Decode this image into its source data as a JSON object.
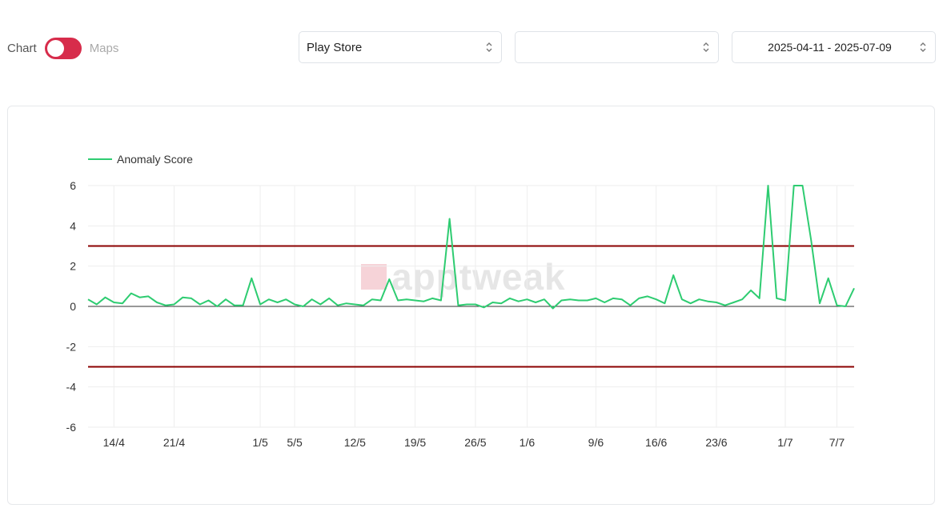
{
  "toggle": {
    "left_label": "Chart",
    "right_label": "Maps",
    "checked": true
  },
  "selects": {
    "store": "Play Store",
    "second": "",
    "date_range": "2025-04-11 - 2025-07-09"
  },
  "watermark": "apptweak",
  "colors": {
    "accent": "#d72c4b",
    "series": "#2ecc71",
    "threshold": "#8b0000",
    "zero_line": "#333333"
  },
  "chart_data": {
    "type": "line",
    "legend": "top-left",
    "grid": true,
    "ylim": [
      -6,
      6
    ],
    "yticks": [
      "6",
      "4",
      "2",
      "0",
      "-2",
      "-4",
      "-6"
    ],
    "x_start": "2025-04-11",
    "x_end": "2025-07-09",
    "xticks": [
      {
        "label": "14/4",
        "date": "2025-04-14"
      },
      {
        "label": "21/4",
        "date": "2025-04-21"
      },
      {
        "label": "1/5",
        "date": "2025-05-01"
      },
      {
        "label": "5/5",
        "date": "2025-05-05"
      },
      {
        "label": "12/5",
        "date": "2025-05-12"
      },
      {
        "label": "19/5",
        "date": "2025-05-19"
      },
      {
        "label": "26/5",
        "date": "2025-05-26"
      },
      {
        "label": "1/6",
        "date": "2025-06-01"
      },
      {
        "label": "9/6",
        "date": "2025-06-09"
      },
      {
        "label": "16/6",
        "date": "2025-06-16"
      },
      {
        "label": "23/6",
        "date": "2025-06-23"
      },
      {
        "label": "1/7",
        "date": "2025-07-01"
      },
      {
        "label": "7/7",
        "date": "2025-07-07"
      }
    ],
    "thresholds": [
      3,
      -3
    ],
    "series": [
      {
        "name": "Anomaly Score",
        "values": [
          0.35,
          0.1,
          0.45,
          0.2,
          0.15,
          0.65,
          0.45,
          0.5,
          0.2,
          0.05,
          0.1,
          0.45,
          0.4,
          0.1,
          0.3,
          0.0,
          0.35,
          0.05,
          0.05,
          1.4,
          0.1,
          0.35,
          0.2,
          0.35,
          0.1,
          0.0,
          0.35,
          0.1,
          0.4,
          0.05,
          0.15,
          0.1,
          0.05,
          0.35,
          0.3,
          1.35,
          0.3,
          0.35,
          0.3,
          0.25,
          0.4,
          0.3,
          4.35,
          0.05,
          0.1,
          0.1,
          -0.05,
          0.2,
          0.15,
          0.4,
          0.25,
          0.35,
          0.2,
          0.35,
          -0.1,
          0.3,
          0.35,
          0.3,
          0.3,
          0.4,
          0.2,
          0.4,
          0.35,
          0.05,
          0.4,
          0.5,
          0.35,
          0.15,
          1.55,
          0.35,
          0.15,
          0.35,
          0.25,
          0.2,
          0.05,
          0.2,
          0.35,
          0.8,
          0.4,
          6.0,
          0.4,
          0.3,
          6.0,
          6.0,
          3.3,
          0.15,
          1.4,
          0.05,
          0.0,
          0.9
        ]
      }
    ]
  }
}
